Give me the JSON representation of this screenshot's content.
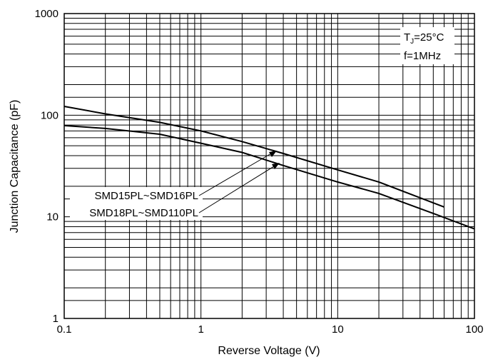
{
  "chart_data": {
    "type": "line",
    "xscale": "log",
    "yscale": "log",
    "xlim": [
      0.1,
      100
    ],
    "ylim": [
      1,
      1000
    ],
    "grid": true,
    "xlabel": "Reverse Voltage (V)",
    "ylabel": "Junction Capacitance (pF)",
    "x_ticks": [
      "0.1",
      "1",
      "10",
      "100"
    ],
    "y_ticks": [
      "1",
      "10",
      "100",
      "1000"
    ],
    "conditions": {
      "tj_prefix": "T",
      "tj_subscript": "J",
      "tj_value": "=25°C",
      "frequency": "f=1MHz"
    },
    "series": [
      {
        "name": "SMD15PL~SMD16PL",
        "x": [
          0.1,
          0.2,
          0.5,
          1,
          2,
          4,
          10,
          20,
          60
        ],
        "y": [
          122,
          103,
          85,
          70,
          55,
          42,
          29,
          22,
          12.5
        ]
      },
      {
        "name": "SMD18PL~SMD110PL",
        "x": [
          0.1,
          0.2,
          0.5,
          1,
          2,
          4,
          10,
          20,
          50,
          100
        ],
        "y": [
          79,
          74,
          65,
          53,
          43,
          32,
          22,
          17,
          10.8,
          7.6
        ]
      }
    ]
  }
}
